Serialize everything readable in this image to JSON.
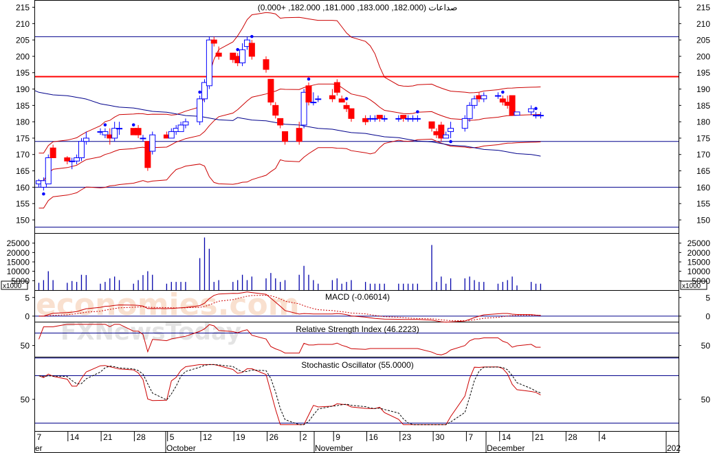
{
  "price_title": "صداعات (182.000, 183.000, 181.000, 182.000, +0.000)",
  "macd_title": "MACD (-0.06014)",
  "rsi_title": "Relative Strength Index (46.2223)",
  "stoch_title": "Stochastic Oscillator (55.0000)",
  "volume_multiplier": "x1000",
  "watermarks": [
    "economies.com",
    "FXNewsToday"
  ],
  "x_ticks": [
    "7",
    "14",
    "21",
    "28",
    "5",
    "12",
    "19",
    "26",
    "2",
    "9",
    "16",
    "23",
    "30",
    "7",
    "14",
    "21",
    "28",
    "4"
  ],
  "month_labels": [
    "er",
    "October",
    "November",
    "December",
    "202"
  ],
  "colors": {
    "up": "#0000ff",
    "down": "#ff0000",
    "ma": "#00008b",
    "band": "#cc0000",
    "grid": "#00008b",
    "resistance": "#ff0000",
    "stoch_d": "#000000"
  },
  "chart_data": {
    "type": "candlestick",
    "price_axis": {
      "ticks": [
        150,
        155,
        160,
        165,
        170,
        175,
        180,
        185,
        190,
        195,
        200,
        205,
        210,
        215
      ],
      "range": [
        146,
        217
      ]
    },
    "horizontal_lines": [
      {
        "value": 206,
        "color": "navy"
      },
      {
        "value": 193.8,
        "color": "red"
      },
      {
        "value": 174,
        "color": "navy"
      },
      {
        "value": 160,
        "color": "navy"
      },
      {
        "value": 147.8,
        "color": "navy"
      }
    ],
    "candles": [
      {
        "d": "Sep 7",
        "o": 161,
        "h": 162.5,
        "l": 160,
        "c": 162
      },
      {
        "d": "Sep 8",
        "o": 160,
        "h": 163,
        "l": 159,
        "c": 162
      },
      {
        "d": "Sep 9",
        "o": 161,
        "h": 170,
        "l": 161,
        "c": 169
      },
      {
        "d": "Sep 10",
        "o": 172,
        "h": 173,
        "l": 169,
        "c": 169
      },
      {
        "d": "Sep 13",
        "o": 169,
        "h": 169.5,
        "l": 167,
        "c": 168
      },
      {
        "d": "Sep 14",
        "o": 168,
        "h": 169,
        "l": 165.5,
        "c": 168
      },
      {
        "d": "Sep 15",
        "o": 168,
        "h": 170,
        "l": 167,
        "c": 169
      },
      {
        "d": "Sep 16",
        "o": 169,
        "h": 175,
        "l": 168,
        "c": 174
      },
      {
        "d": "Sep 17",
        "o": 174,
        "h": 177,
        "l": 173,
        "c": 175
      },
      {
        "d": "Sep 20",
        "o": 177,
        "h": 178,
        "l": 176,
        "c": 177
      },
      {
        "d": "Sep 21",
        "o": 176,
        "h": 178,
        "l": 175,
        "c": 177
      },
      {
        "d": "Sep 22",
        "o": 176,
        "h": 178,
        "l": 173,
        "c": 175
      },
      {
        "d": "Sep 23",
        "o": 175,
        "h": 180,
        "l": 174,
        "c": 178
      },
      {
        "d": "Sep 24",
        "o": 178,
        "h": 180,
        "l": 176,
        "c": 178
      },
      {
        "d": "Sep 27",
        "o": 178,
        "h": 178,
        "l": 176,
        "c": 176
      },
      {
        "d": "Sep 28",
        "o": 178,
        "h": 179,
        "l": 175,
        "c": 176
      },
      {
        "d": "Sep 29",
        "o": 175,
        "h": 176,
        "l": 174,
        "c": 175
      },
      {
        "d": "Sep 30",
        "o": 174,
        "h": 174,
        "l": 165,
        "c": 166
      },
      {
        "d": "Oct 1",
        "o": 171,
        "h": 177,
        "l": 170,
        "c": 176
      },
      {
        "d": "Oct 4",
        "o": 176,
        "h": 177,
        "l": 175,
        "c": 175
      },
      {
        "d": "Oct 5",
        "o": 175,
        "h": 178,
        "l": 175,
        "c": 177
      },
      {
        "d": "Oct 6",
        "o": 177,
        "h": 179,
        "l": 176,
        "c": 178
      },
      {
        "d": "Oct 7",
        "o": 177,
        "h": 180,
        "l": 177,
        "c": 179
      },
      {
        "d": "Oct 8",
        "o": 179,
        "h": 181,
        "l": 178,
        "c": 180
      },
      {
        "d": "Oct 11",
        "o": 180,
        "h": 188,
        "l": 179,
        "c": 187
      },
      {
        "d": "Oct 12",
        "o": 187,
        "h": 193,
        "l": 186,
        "c": 192
      },
      {
        "d": "Oct 13",
        "o": 191,
        "h": 206,
        "l": 190,
        "c": 205
      },
      {
        "d": "Oct 14",
        "o": 205,
        "h": 206,
        "l": 203,
        "c": 204
      },
      {
        "d": "Oct 15",
        "o": 201,
        "h": 203,
        "l": 199,
        "c": 200
      },
      {
        "d": "Oct 18",
        "o": 201,
        "h": 201,
        "l": 198,
        "c": 199
      },
      {
        "d": "Oct 19",
        "o": 200,
        "h": 201,
        "l": 197,
        "c": 198
      },
      {
        "d": "Oct 20",
        "o": 198,
        "h": 204,
        "l": 197,
        "c": 202
      },
      {
        "d": "Oct 21",
        "o": 203,
        "h": 206,
        "l": 202,
        "c": 205
      },
      {
        "d": "Oct 22",
        "o": 204,
        "h": 205,
        "l": 199,
        "c": 200
      },
      {
        "d": "Oct 25",
        "o": 199,
        "h": 200,
        "l": 195,
        "c": 196
      },
      {
        "d": "Oct 26",
        "o": 193,
        "h": 193,
        "l": 185,
        "c": 186
      },
      {
        "d": "Oct 27",
        "o": 185,
        "h": 186,
        "l": 181,
        "c": 182
      },
      {
        "d": "Oct 28",
        "o": 181,
        "h": 181,
        "l": 178,
        "c": 179
      },
      {
        "d": "Oct 29",
        "o": 177,
        "h": 177,
        "l": 173,
        "c": 174
      },
      {
        "d": "Nov 1",
        "o": 178,
        "h": 180,
        "l": 173,
        "c": 174
      },
      {
        "d": "Nov 2",
        "o": 179,
        "h": 190,
        "l": 178,
        "c": 189
      },
      {
        "d": "Nov 3",
        "o": 191,
        "h": 192,
        "l": 185,
        "c": 186
      },
      {
        "d": "Nov 4",
        "o": 186,
        "h": 189,
        "l": 185,
        "c": 186
      },
      {
        "d": "Nov 5",
        "o": 187,
        "h": 188,
        "l": 186,
        "c": 187
      },
      {
        "d": "Nov 8",
        "o": 188,
        "h": 190,
        "l": 186,
        "c": 187
      },
      {
        "d": "Nov 9",
        "o": 192,
        "h": 193,
        "l": 188,
        "c": 189
      },
      {
        "d": "Nov 10",
        "o": 187,
        "h": 188,
        "l": 186,
        "c": 186
      },
      {
        "d": "Nov 11",
        "o": 185,
        "h": 186,
        "l": 183,
        "c": 184
      },
      {
        "d": "Nov 12",
        "o": 184,
        "h": 184,
        "l": 180,
        "c": 181
      },
      {
        "d": "Nov 15",
        "o": 181,
        "h": 182,
        "l": 179,
        "c": 180
      },
      {
        "d": "Nov 16",
        "o": 181,
        "h": 182,
        "l": 180,
        "c": 181
      },
      {
        "d": "Nov 17",
        "o": 181,
        "h": 182,
        "l": 180,
        "c": 181
      },
      {
        "d": "Nov 18",
        "o": 182,
        "h": 182,
        "l": 180,
        "c": 181
      },
      {
        "d": "Nov 19",
        "o": 181,
        "h": 182,
        "l": 180,
        "c": 181
      },
      {
        "d": "Nov 22",
        "o": 181,
        "h": 182,
        "l": 180,
        "c": 181
      },
      {
        "d": "Nov 23",
        "o": 182,
        "h": 182,
        "l": 180,
        "c": 181
      },
      {
        "d": "Nov 24",
        "o": 181,
        "h": 182,
        "l": 180,
        "c": 181
      },
      {
        "d": "Nov 25",
        "o": 181,
        "h": 182,
        "l": 180,
        "c": 181
      },
      {
        "d": "Nov 26",
        "o": 181,
        "h": 182,
        "l": 180,
        "c": 181
      },
      {
        "d": "Nov 29",
        "o": 180,
        "h": 180,
        "l": 177,
        "c": 178
      },
      {
        "d": "Nov 30",
        "o": 177,
        "h": 178,
        "l": 175,
        "c": 176
      },
      {
        "d": "Dec 1",
        "o": 179,
        "h": 180,
        "l": 174,
        "c": 175
      },
      {
        "d": "Dec 2",
        "o": 175,
        "h": 177,
        "l": 175,
        "c": 176
      },
      {
        "d": "Dec 3",
        "o": 177,
        "h": 180,
        "l": 175,
        "c": 178
      },
      {
        "d": "Dec 6",
        "o": 178,
        "h": 182,
        "l": 177,
        "c": 181
      },
      {
        "d": "Dec 7",
        "o": 181,
        "h": 186,
        "l": 180,
        "c": 185
      },
      {
        "d": "Dec 8",
        "o": 185,
        "h": 188,
        "l": 184,
        "c": 187
      },
      {
        "d": "Dec 9",
        "o": 188,
        "h": 189,
        "l": 186,
        "c": 187
      },
      {
        "d": "Dec 10",
        "o": 187,
        "h": 189,
        "l": 186,
        "c": 188
      },
      {
        "d": "Dec 13",
        "o": 188,
        "h": 189,
        "l": 187,
        "c": 188
      },
      {
        "d": "Dec 14",
        "o": 187,
        "h": 188,
        "l": 185,
        "c": 186
      },
      {
        "d": "Dec 15",
        "o": 186,
        "h": 188,
        "l": 184,
        "c": 185
      },
      {
        "d": "Dec 16",
        "o": 188,
        "h": 188,
        "l": 182,
        "c": 182
      },
      {
        "d": "Dec 17",
        "o": 182,
        "h": 183,
        "l": 182,
        "c": 183
      },
      {
        "d": "Dec 20",
        "o": 183,
        "h": 185,
        "l": 182,
        "c": 184
      },
      {
        "d": "Dec 21",
        "o": 182,
        "h": 183,
        "l": 181,
        "c": 182
      },
      {
        "d": "Dec 22",
        "o": 182,
        "h": 183,
        "l": 181,
        "c": 182
      }
    ],
    "volume_axis": {
      "ticks": [
        5000,
        10000,
        15000,
        20000,
        25000
      ],
      "range": [
        0,
        30000
      ]
    },
    "macd_axis": {
      "ticks": [
        0,
        5
      ],
      "range": [
        -1.5,
        6.8
      ]
    },
    "rsi_axis": {
      "ticks": [
        50
      ],
      "range": [
        32,
        87
      ],
      "lines": [
        70,
        30
      ]
    },
    "stoch_axis": {
      "ticks": [
        50
      ],
      "range": [
        10,
        103
      ],
      "lines": [
        80,
        20
      ]
    }
  }
}
